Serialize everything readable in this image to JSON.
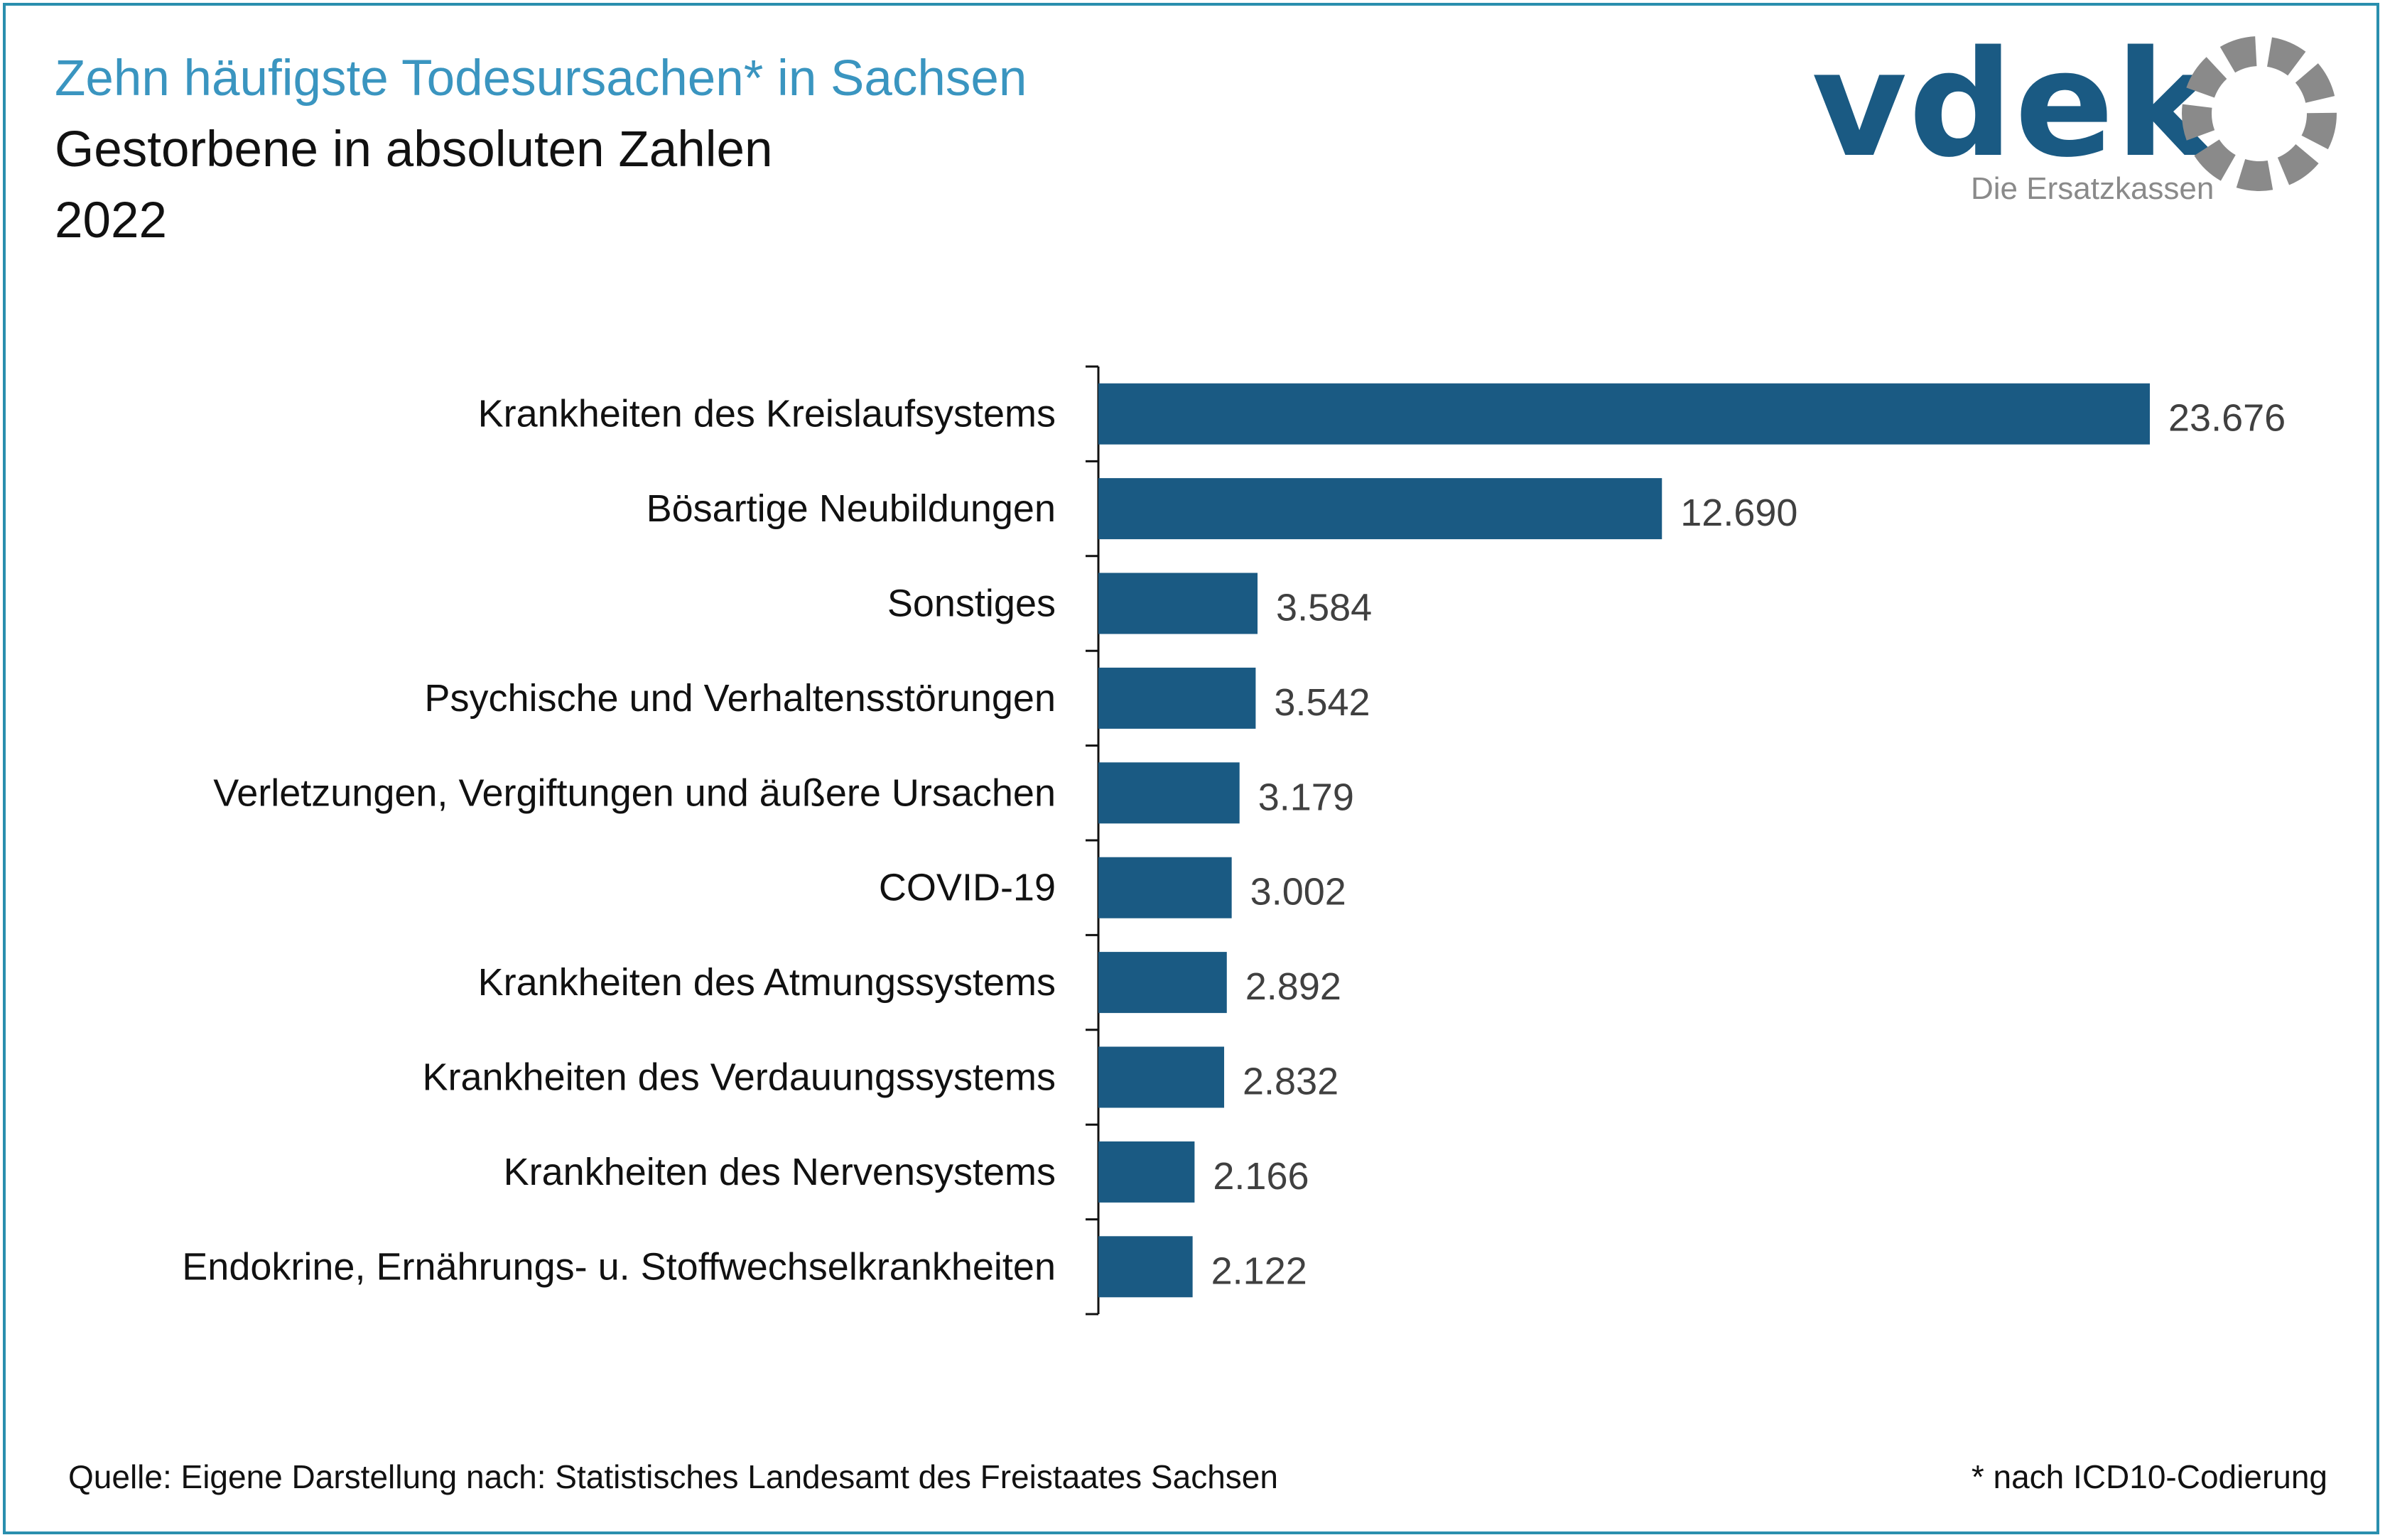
{
  "header": {
    "title": "Zehn häufigste Todesursachen* in Sachsen",
    "subtitle": "Gestorbene in absoluten Zahlen",
    "year": "2022"
  },
  "logo": {
    "wordmark": "vdek",
    "tagline": "Die Ersatzkassen",
    "color_primary": "#1a5a83",
    "color_secondary": "#8a8a8a"
  },
  "footer": {
    "source": "Quelle: Eigene Darstellung nach: Statistisches Landesamt des Freistaates Sachsen",
    "note": "* nach ICD10-Codierung"
  },
  "chart_data": {
    "type": "bar",
    "orientation": "horizontal",
    "bar_color": "#1a5a83",
    "categories": [
      "Krankheiten des Kreislaufsystems",
      "Bösartige Neubildungen",
      "Sonstiges",
      "Psychische und Verhaltensstörungen",
      "Verletzungen, Vergiftungen und äußere Ursachen",
      "COVID-19",
      "Krankheiten des Atmungssystems",
      "Krankheiten des Verdauungssystems",
      "Krankheiten des Nervensystems",
      "Endokrine, Ernährungs- u. Stoffwechselkrankheiten"
    ],
    "values": [
      23676,
      12690,
      3584,
      3542,
      3179,
      3002,
      2892,
      2832,
      2166,
      2122
    ],
    "value_labels": [
      "23.676",
      "12.690",
      "3.584",
      "3.542",
      "3.179",
      "3.002",
      "2.892",
      "2.832",
      "2.166",
      "2.122"
    ],
    "xlim": [
      0,
      23676
    ],
    "grid": false,
    "legend": "none"
  }
}
